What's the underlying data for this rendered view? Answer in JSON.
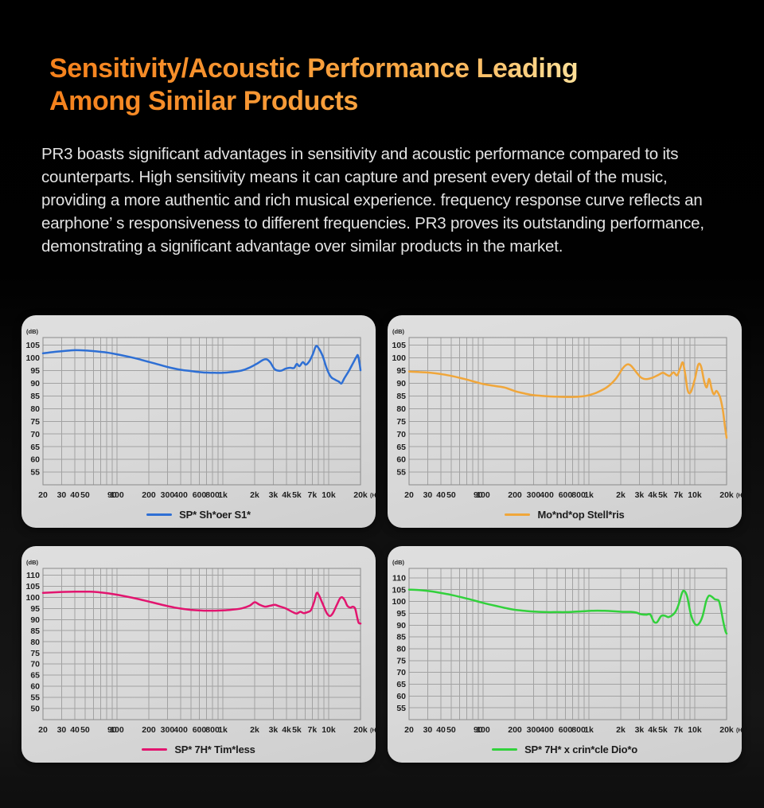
{
  "header": {
    "title_line1": "Sensitivity/Acoustic Performance Leading",
    "title_line2": "Among Similar Products"
  },
  "intro": {
    "text": "PR3 boasts significant advantages in sensitivity and acoustic performance compared to its counterparts. High sensitivity means it can capture and present every detail of the music, providing a more authentic and rich musical experience. frequency response curve reflects an earphone’ s responsiveness to different frequencies. PR3 proves its outstanding performance, demonstrating a significant advantage over similar products in the market."
  },
  "theme": {
    "title_gradient": [
      "#f5811c",
      "#ffe098"
    ],
    "card_background": "#d9d9d9",
    "grid_color": "#a2a2a2",
    "plot_border_color": "#8a8a8a",
    "axis_text_color": "#1f1f1f"
  },
  "chart_data": [
    {
      "type": "line",
      "legend": "SP* Sh*oer S1*",
      "color": "#2e6fd4",
      "ylabel_unit": "(dB)",
      "xlabel_unit": "(Hz)",
      "xlim": [
        20,
        20000
      ],
      "ylim": [
        50,
        108
      ],
      "yticks": [
        55,
        60,
        65,
        70,
        75,
        80,
        85,
        90,
        95,
        100,
        105
      ],
      "xticks": [
        {
          "v": 20,
          "l": "20"
        },
        {
          "v": 30,
          "l": "30"
        },
        {
          "v": 40,
          "l": "40"
        },
        {
          "v": 50,
          "l": "50"
        },
        {
          "v": 90,
          "l": "90"
        },
        {
          "v": 100,
          "l": "100"
        },
        {
          "v": 200,
          "l": "200"
        },
        {
          "v": 300,
          "l": "300"
        },
        {
          "v": 400,
          "l": "400"
        },
        {
          "v": 600,
          "l": "600"
        },
        {
          "v": 800,
          "l": "800"
        },
        {
          "v": 1000,
          "l": "1k"
        },
        {
          "v": 2000,
          "l": "2k"
        },
        {
          "v": 3000,
          "l": "3k"
        },
        {
          "v": 4000,
          "l": "4k"
        },
        {
          "v": 5000,
          "l": "5k"
        },
        {
          "v": 7000,
          "l": "7k"
        },
        {
          "v": 10000,
          "l": "10k"
        },
        {
          "v": 20000,
          "l": "20k"
        }
      ],
      "points": [
        [
          20,
          101.8
        ],
        [
          25,
          102.3
        ],
        [
          32,
          102.7
        ],
        [
          40,
          103
        ],
        [
          50,
          102.9
        ],
        [
          65,
          102.5
        ],
        [
          80,
          102.1
        ],
        [
          100,
          101.4
        ],
        [
          130,
          100.4
        ],
        [
          160,
          99.5
        ],
        [
          200,
          98.4
        ],
        [
          250,
          97.3
        ],
        [
          300,
          96.4
        ],
        [
          400,
          95.3
        ],
        [
          500,
          94.8
        ],
        [
          600,
          94.4
        ],
        [
          700,
          94.2
        ],
        [
          850,
          94.1
        ],
        [
          1000,
          94.1
        ],
        [
          1200,
          94.4
        ],
        [
          1500,
          95
        ],
        [
          1800,
          96.2
        ],
        [
          2100,
          97.7
        ],
        [
          2400,
          99.2
        ],
        [
          2600,
          99.4
        ],
        [
          2800,
          98.3
        ],
        [
          3100,
          95.5
        ],
        [
          3500,
          94.9
        ],
        [
          3900,
          95.7
        ],
        [
          4300,
          96.1
        ],
        [
          4700,
          96
        ],
        [
          5000,
          97.6
        ],
        [
          5300,
          96.7
        ],
        [
          5700,
          98.3
        ],
        [
          6100,
          97.3
        ],
        [
          6600,
          98.8
        ],
        [
          7100,
          101.5
        ],
        [
          7600,
          104.6
        ],
        [
          8100,
          103.6
        ],
        [
          8800,
          100.6
        ],
        [
          9600,
          95.8
        ],
        [
          10500,
          92.5
        ],
        [
          11500,
          91.4
        ],
        [
          12500,
          90.6
        ],
        [
          13200,
          89.9
        ],
        [
          14000,
          91.8
        ],
        [
          15500,
          94.8
        ],
        [
          17000,
          97.9
        ],
        [
          18300,
          100.4
        ],
        [
          18900,
          101
        ],
        [
          19500,
          98.3
        ],
        [
          20000,
          95.1
        ]
      ]
    },
    {
      "type": "line",
      "legend": "Mo*nd*op Stell*ris",
      "color": "#f0a63a",
      "ylabel_unit": "(dB)",
      "xlabel_unit": "(Hz)",
      "xlim": [
        20,
        20000
      ],
      "ylim": [
        50,
        108
      ],
      "yticks": [
        55,
        60,
        65,
        70,
        75,
        80,
        85,
        90,
        95,
        100,
        105
      ],
      "xticks": [
        {
          "v": 20,
          "l": "20"
        },
        {
          "v": 30,
          "l": "30"
        },
        {
          "v": 40,
          "l": "40"
        },
        {
          "v": 50,
          "l": "50"
        },
        {
          "v": 90,
          "l": "90"
        },
        {
          "v": 100,
          "l": "100"
        },
        {
          "v": 200,
          "l": "200"
        },
        {
          "v": 300,
          "l": "300"
        },
        {
          "v": 400,
          "l": "400"
        },
        {
          "v": 600,
          "l": "600"
        },
        {
          "v": 800,
          "l": "800"
        },
        {
          "v": 1000,
          "l": "1k"
        },
        {
          "v": 2000,
          "l": "2k"
        },
        {
          "v": 3000,
          "l": "3k"
        },
        {
          "v": 4000,
          "l": "4k"
        },
        {
          "v": 5000,
          "l": "5k"
        },
        {
          "v": 7000,
          "l": "7k"
        },
        {
          "v": 10000,
          "l": "10k"
        },
        {
          "v": 20000,
          "l": "20k"
        }
      ],
      "points": [
        [
          20,
          94.6
        ],
        [
          25,
          94.4
        ],
        [
          32,
          94.1
        ],
        [
          40,
          93.6
        ],
        [
          50,
          92.9
        ],
        [
          65,
          91.8
        ],
        [
          80,
          90.8
        ],
        [
          100,
          89.7
        ],
        [
          130,
          88.9
        ],
        [
          160,
          88.3
        ],
        [
          200,
          86.9
        ],
        [
          250,
          85.9
        ],
        [
          300,
          85.3
        ],
        [
          400,
          84.9
        ],
        [
          500,
          84.7
        ],
        [
          600,
          84.6
        ],
        [
          700,
          84.6
        ],
        [
          850,
          84.8
        ],
        [
          1000,
          85.3
        ],
        [
          1200,
          86.4
        ],
        [
          1500,
          88.6
        ],
        [
          1800,
          91.8
        ],
        [
          2100,
          96
        ],
        [
          2300,
          97.4
        ],
        [
          2500,
          96.9
        ],
        [
          2800,
          94.4
        ],
        [
          3100,
          92.3
        ],
        [
          3500,
          91.6
        ],
        [
          4000,
          92.2
        ],
        [
          4500,
          93.2
        ],
        [
          5000,
          94.1
        ],
        [
          5400,
          93.4
        ],
        [
          5800,
          92.9
        ],
        [
          6300,
          94.3
        ],
        [
          6800,
          93.1
        ],
        [
          7300,
          96
        ],
        [
          7700,
          98.2
        ],
        [
          8100,
          94
        ],
        [
          8600,
          87
        ],
        [
          9200,
          86.6
        ],
        [
          10000,
          91.5
        ],
        [
          10800,
          97.3
        ],
        [
          11500,
          96.5
        ],
        [
          12300,
          90.6
        ],
        [
          13000,
          88.4
        ],
        [
          13700,
          91.7
        ],
        [
          14500,
          87.5
        ],
        [
          15200,
          85.6
        ],
        [
          16000,
          87
        ],
        [
          16800,
          85.8
        ],
        [
          17500,
          84
        ],
        [
          18500,
          79
        ],
        [
          19300,
          73
        ],
        [
          20000,
          68.5
        ]
      ]
    },
    {
      "type": "line",
      "legend": "SP* 7H* Tim*less",
      "color": "#e2156f",
      "ylabel_unit": "(dB)",
      "xlabel_unit": "(Hz)",
      "xlim": [
        20,
        20000
      ],
      "ylim": [
        45,
        113
      ],
      "yticks": [
        50,
        55,
        60,
        65,
        70,
        75,
        80,
        85,
        90,
        95,
        100,
        105,
        110
      ],
      "xticks": [
        {
          "v": 20,
          "l": "20"
        },
        {
          "v": 30,
          "l": "30"
        },
        {
          "v": 40,
          "l": "40"
        },
        {
          "v": 50,
          "l": "50"
        },
        {
          "v": 90,
          "l": "90"
        },
        {
          "v": 100,
          "l": "100"
        },
        {
          "v": 200,
          "l": "200"
        },
        {
          "v": 300,
          "l": "300"
        },
        {
          "v": 400,
          "l": "400"
        },
        {
          "v": 600,
          "l": "600"
        },
        {
          "v": 800,
          "l": "800"
        },
        {
          "v": 1000,
          "l": "1k"
        },
        {
          "v": 2000,
          "l": "2k"
        },
        {
          "v": 3000,
          "l": "3k"
        },
        {
          "v": 4000,
          "l": "4k"
        },
        {
          "v": 5000,
          "l": "5k"
        },
        {
          "v": 7000,
          "l": "7k"
        },
        {
          "v": 10000,
          "l": "10k"
        },
        {
          "v": 20000,
          "l": "20k"
        }
      ],
      "points": [
        [
          20,
          102
        ],
        [
          30,
          102.4
        ],
        [
          40,
          102.5
        ],
        [
          55,
          102.5
        ],
        [
          70,
          102.2
        ],
        [
          90,
          101.5
        ],
        [
          110,
          100.8
        ],
        [
          140,
          99.8
        ],
        [
          180,
          98.6
        ],
        [
          220,
          97.6
        ],
        [
          280,
          96.4
        ],
        [
          350,
          95.4
        ],
        [
          450,
          94.6
        ],
        [
          550,
          94.2
        ],
        [
          700,
          94
        ],
        [
          850,
          94
        ],
        [
          1000,
          94.1
        ],
        [
          1200,
          94.4
        ],
        [
          1500,
          95
        ],
        [
          1800,
          96.3
        ],
        [
          2000,
          97.8
        ],
        [
          2200,
          96.8
        ],
        [
          2500,
          95.8
        ],
        [
          2800,
          96.2
        ],
        [
          3100,
          96.6
        ],
        [
          3400,
          96
        ],
        [
          3800,
          95.3
        ],
        [
          4200,
          94.3
        ],
        [
          4600,
          93.3
        ],
        [
          5000,
          92.7
        ],
        [
          5400,
          93.5
        ],
        [
          5800,
          92.9
        ],
        [
          6300,
          93.3
        ],
        [
          6800,
          94.2
        ],
        [
          7300,
          98
        ],
        [
          7700,
          101.9
        ],
        [
          8100,
          100.9
        ],
        [
          8800,
          97
        ],
        [
          9600,
          92.9
        ],
        [
          10300,
          91.6
        ],
        [
          11000,
          93
        ],
        [
          12000,
          96.8
        ],
        [
          12800,
          99.5
        ],
        [
          13400,
          100
        ],
        [
          14200,
          98.7
        ],
        [
          15000,
          96.2
        ],
        [
          16000,
          95.4
        ],
        [
          17000,
          95.8
        ],
        [
          17800,
          94.9
        ],
        [
          18500,
          91.5
        ],
        [
          19200,
          88.6
        ],
        [
          20000,
          88.2
        ]
      ]
    },
    {
      "type": "line",
      "legend": "SP* 7H* x crin*cle Dio*o",
      "color": "#32d13c",
      "ylabel_unit": "(dB)",
      "xlabel_unit": "(Hz)",
      "xlim": [
        20,
        20000
      ],
      "ylim": [
        50,
        114
      ],
      "yticks": [
        55,
        60,
        65,
        70,
        75,
        80,
        85,
        90,
        95,
        100,
        105,
        110
      ],
      "xticks": [
        {
          "v": 20,
          "l": "20"
        },
        {
          "v": 30,
          "l": "30"
        },
        {
          "v": 40,
          "l": "40"
        },
        {
          "v": 50,
          "l": "50"
        },
        {
          "v": 90,
          "l": "90"
        },
        {
          "v": 100,
          "l": "100"
        },
        {
          "v": 200,
          "l": "200"
        },
        {
          "v": 300,
          "l": "300"
        },
        {
          "v": 400,
          "l": "400"
        },
        {
          "v": 600,
          "l": "600"
        },
        {
          "v": 800,
          "l": "800"
        },
        {
          "v": 1000,
          "l": "1k"
        },
        {
          "v": 2000,
          "l": "2k"
        },
        {
          "v": 3000,
          "l": "3k"
        },
        {
          "v": 4000,
          "l": "4k"
        },
        {
          "v": 5000,
          "l": "5k"
        },
        {
          "v": 7000,
          "l": "7k"
        },
        {
          "v": 10000,
          "l": "10k"
        },
        {
          "v": 20000,
          "l": "20k"
        }
      ],
      "points": [
        [
          20,
          105
        ],
        [
          25,
          104.8
        ],
        [
          32,
          104.3
        ],
        [
          40,
          103.6
        ],
        [
          50,
          102.8
        ],
        [
          65,
          101.6
        ],
        [
          80,
          100.6
        ],
        [
          100,
          99.4
        ],
        [
          130,
          98.2
        ],
        [
          160,
          97.3
        ],
        [
          200,
          96.5
        ],
        [
          250,
          96
        ],
        [
          300,
          95.7
        ],
        [
          400,
          95.5
        ],
        [
          500,
          95.5
        ],
        [
          600,
          95.5
        ],
        [
          700,
          95.6
        ],
        [
          850,
          95.8
        ],
        [
          1000,
          96
        ],
        [
          1200,
          96.1
        ],
        [
          1500,
          96
        ],
        [
          1800,
          95.8
        ],
        [
          2100,
          95.6
        ],
        [
          2500,
          95.6
        ],
        [
          2800,
          95.3
        ],
        [
          3100,
          94.6
        ],
        [
          3500,
          94.4
        ],
        [
          3800,
          94.5
        ],
        [
          4100,
          91.5
        ],
        [
          4400,
          91.2
        ],
        [
          4800,
          93.8
        ],
        [
          5200,
          94
        ],
        [
          5600,
          93.4
        ],
        [
          6000,
          93.9
        ],
        [
          6500,
          95.3
        ],
        [
          7000,
          98.4
        ],
        [
          7600,
          103.7
        ],
        [
          8000,
          104.4
        ],
        [
          8500,
          101.9
        ],
        [
          9200,
          94.5
        ],
        [
          10000,
          90.6
        ],
        [
          10800,
          90.3
        ],
        [
          11800,
          93.5
        ],
        [
          12800,
          100
        ],
        [
          13600,
          102.4
        ],
        [
          14500,
          102
        ],
        [
          15500,
          100.9
        ],
        [
          16300,
          100.7
        ],
        [
          17000,
          100
        ],
        [
          17800,
          96
        ],
        [
          18700,
          91
        ],
        [
          19500,
          87.5
        ],
        [
          20000,
          86.4
        ]
      ]
    }
  ]
}
